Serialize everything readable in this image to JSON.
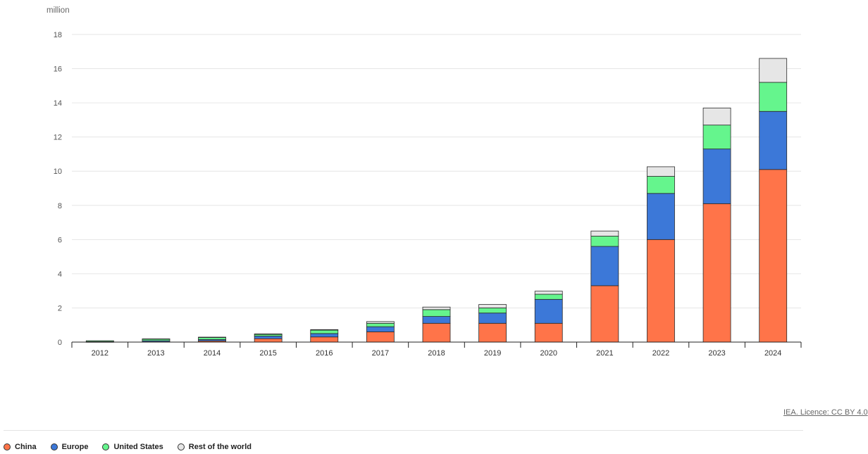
{
  "chart_data": {
    "type": "bar",
    "stacked": true,
    "unit_label": "million",
    "categories": [
      "2012",
      "2013",
      "2014",
      "2015",
      "2016",
      "2017",
      "2018",
      "2019",
      "2020",
      "2021",
      "2022",
      "2023",
      "2024"
    ],
    "series": [
      {
        "name": "China",
        "color": "#ff7449",
        "values": [
          0.01,
          0.02,
          0.07,
          0.2,
          0.3,
          0.6,
          1.1,
          1.1,
          1.1,
          3.3,
          6.0,
          8.1,
          10.1
        ]
      },
      {
        "name": "Europe",
        "color": "#3c78d8",
        "values": [
          0.02,
          0.06,
          0.08,
          0.15,
          0.2,
          0.3,
          0.4,
          0.6,
          1.4,
          2.3,
          2.7,
          3.2,
          3.4
        ]
      },
      {
        "name": "United States",
        "color": "#65f58d",
        "values": [
          0.05,
          0.1,
          0.12,
          0.1,
          0.2,
          0.2,
          0.4,
          0.3,
          0.3,
          0.6,
          1.0,
          1.4,
          1.7
        ]
      },
      {
        "name": "Rest of the world",
        "color": "#e6e6e6",
        "values": [
          0.0,
          0.01,
          0.02,
          0.03,
          0.03,
          0.1,
          0.15,
          0.2,
          0.18,
          0.3,
          0.56,
          1.0,
          1.4
        ]
      }
    ],
    "ylim": [
      0,
      18
    ],
    "yticks": [
      0,
      2,
      4,
      6,
      8,
      10,
      12,
      14,
      16,
      18
    ],
    "grid": true,
    "legend_position": "bottom-left"
  },
  "source": {
    "text": "IEA. Licence: CC BY 4.0"
  }
}
